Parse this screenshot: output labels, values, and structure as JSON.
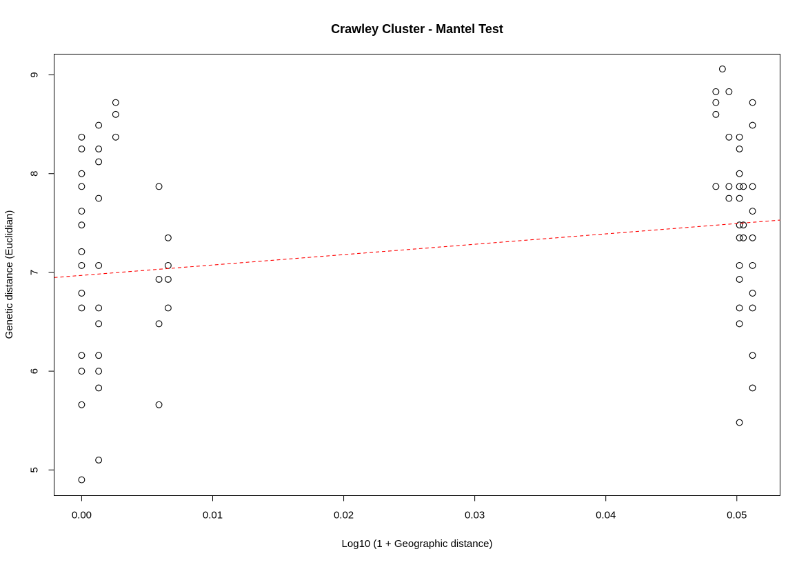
{
  "chart_data": {
    "type": "scatter",
    "title": "Crawley Cluster - Mantel Test",
    "xlabel": "Log10 (1 + Geographic distance)",
    "ylabel": "Genetic distance (Euclidian)",
    "xlim": [
      -0.0021,
      0.0533
    ],
    "ylim": [
      4.74,
      9.21
    ],
    "x_ticks": [
      0.0,
      0.01,
      0.02,
      0.03,
      0.04,
      0.05
    ],
    "x_tick_labels": [
      "0.00",
      "0.01",
      "0.02",
      "0.03",
      "0.04",
      "0.05"
    ],
    "y_ticks": [
      5,
      6,
      7,
      8,
      9
    ],
    "y_tick_labels": [
      "5",
      "6",
      "7",
      "8",
      "9"
    ],
    "grid": false,
    "point_color": "#000000",
    "points": [
      {
        "x": 0.0,
        "y": 4.9
      },
      {
        "x": 0.0,
        "y": 5.66
      },
      {
        "x": 0.0,
        "y": 6.0
      },
      {
        "x": 0.0,
        "y": 6.16
      },
      {
        "x": 0.0,
        "y": 6.64
      },
      {
        "x": 0.0,
        "y": 6.79
      },
      {
        "x": 0.0,
        "y": 7.07
      },
      {
        "x": 0.0,
        "y": 7.21
      },
      {
        "x": 0.0,
        "y": 7.48
      },
      {
        "x": 0.0,
        "y": 7.62
      },
      {
        "x": 0.0,
        "y": 7.87
      },
      {
        "x": 0.0,
        "y": 8.0
      },
      {
        "x": 0.0,
        "y": 8.25
      },
      {
        "x": 0.0,
        "y": 8.37
      },
      {
        "x": 0.0013,
        "y": 5.1
      },
      {
        "x": 0.0013,
        "y": 5.83
      },
      {
        "x": 0.0013,
        "y": 6.0
      },
      {
        "x": 0.0013,
        "y": 6.16
      },
      {
        "x": 0.0013,
        "y": 6.48
      },
      {
        "x": 0.0013,
        "y": 6.64
      },
      {
        "x": 0.0013,
        "y": 7.07
      },
      {
        "x": 0.0013,
        "y": 7.75
      },
      {
        "x": 0.0013,
        "y": 8.12
      },
      {
        "x": 0.0013,
        "y": 8.25
      },
      {
        "x": 0.0013,
        "y": 8.49
      },
      {
        "x": 0.0026,
        "y": 8.37
      },
      {
        "x": 0.0026,
        "y": 8.6
      },
      {
        "x": 0.0026,
        "y": 8.72
      },
      {
        "x": 0.0059,
        "y": 5.66
      },
      {
        "x": 0.0059,
        "y": 6.48
      },
      {
        "x": 0.0059,
        "y": 6.93
      },
      {
        "x": 0.0059,
        "y": 7.87
      },
      {
        "x": 0.0066,
        "y": 6.64
      },
      {
        "x": 0.0066,
        "y": 6.93
      },
      {
        "x": 0.0066,
        "y": 7.07
      },
      {
        "x": 0.0066,
        "y": 7.35
      },
      {
        "x": 0.0484,
        "y": 7.87
      },
      {
        "x": 0.0484,
        "y": 8.6
      },
      {
        "x": 0.0484,
        "y": 8.72
      },
      {
        "x": 0.0484,
        "y": 8.83
      },
      {
        "x": 0.0489,
        "y": 9.06
      },
      {
        "x": 0.0494,
        "y": 7.75
      },
      {
        "x": 0.0494,
        "y": 7.87
      },
      {
        "x": 0.0494,
        "y": 8.37
      },
      {
        "x": 0.0494,
        "y": 8.83
      },
      {
        "x": 0.0502,
        "y": 5.48
      },
      {
        "x": 0.0502,
        "y": 6.48
      },
      {
        "x": 0.0502,
        "y": 6.64
      },
      {
        "x": 0.0502,
        "y": 6.93
      },
      {
        "x": 0.0502,
        "y": 7.07
      },
      {
        "x": 0.0502,
        "y": 7.35
      },
      {
        "x": 0.0502,
        "y": 7.48
      },
      {
        "x": 0.0502,
        "y": 7.75
      },
      {
        "x": 0.0502,
        "y": 7.87
      },
      {
        "x": 0.0502,
        "y": 8.0
      },
      {
        "x": 0.0502,
        "y": 8.25
      },
      {
        "x": 0.0502,
        "y": 8.37
      },
      {
        "x": 0.0505,
        "y": 7.35
      },
      {
        "x": 0.0505,
        "y": 7.48
      },
      {
        "x": 0.0505,
        "y": 7.87
      },
      {
        "x": 0.0512,
        "y": 5.83
      },
      {
        "x": 0.0512,
        "y": 6.16
      },
      {
        "x": 0.0512,
        "y": 6.64
      },
      {
        "x": 0.0512,
        "y": 6.79
      },
      {
        "x": 0.0512,
        "y": 7.07
      },
      {
        "x": 0.0512,
        "y": 7.35
      },
      {
        "x": 0.0512,
        "y": 7.62
      },
      {
        "x": 0.0512,
        "y": 7.87
      },
      {
        "x": 0.0512,
        "y": 8.49
      },
      {
        "x": 0.0512,
        "y": 8.72
      }
    ],
    "regression_line": {
      "style": "dashed",
      "color": "#ff0000",
      "intercept": 6.97,
      "slope": 10.5
    }
  }
}
